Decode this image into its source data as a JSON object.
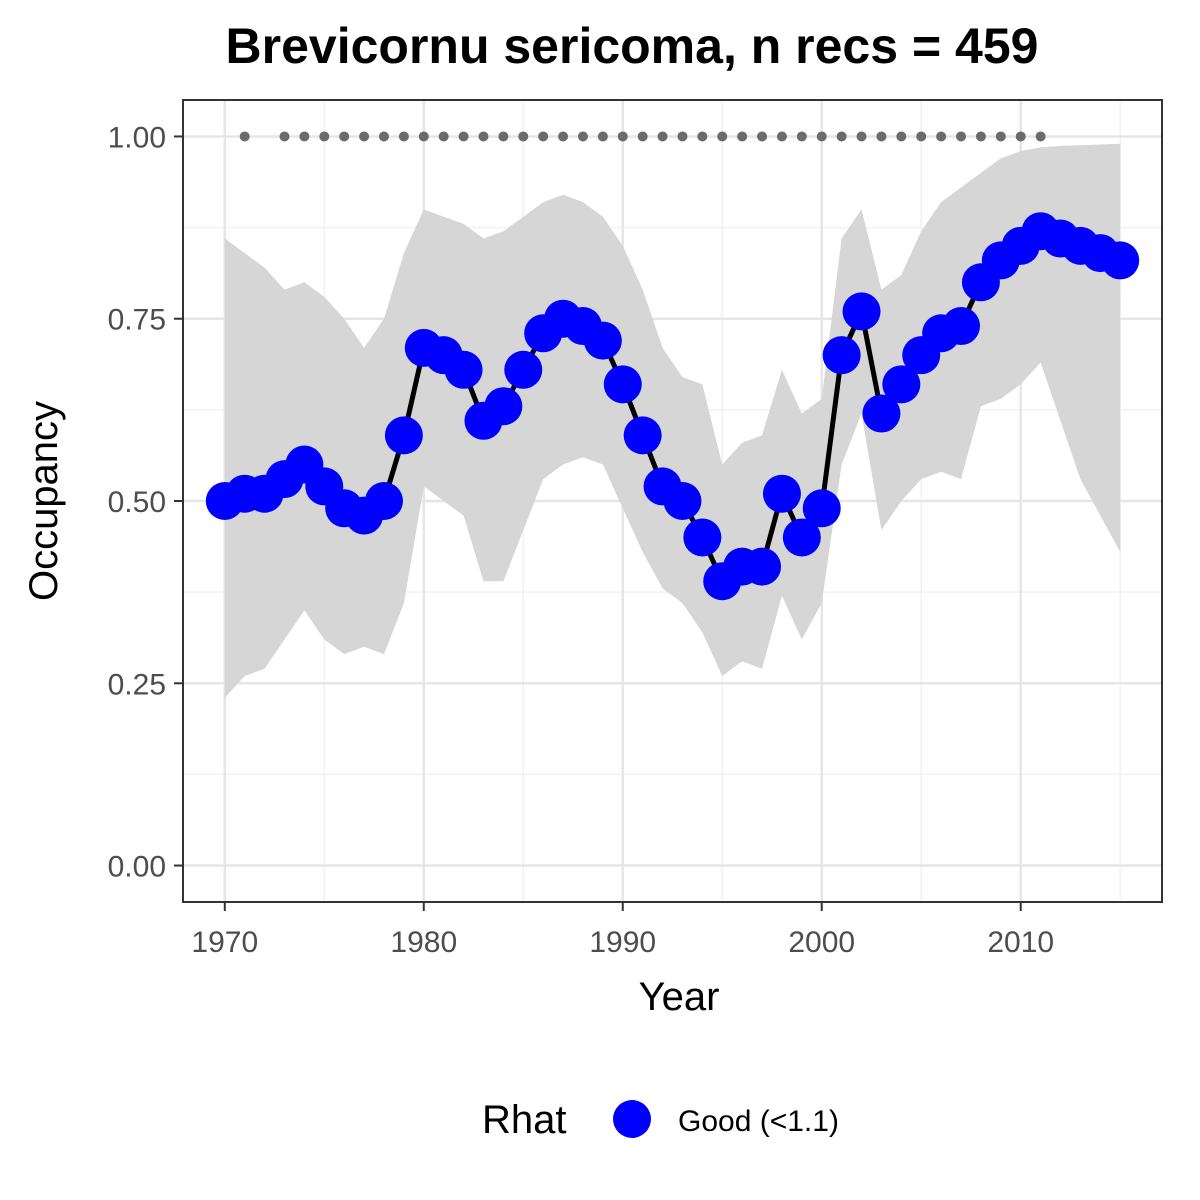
{
  "chart_data": {
    "type": "line",
    "title": "Brevicornu sericoma, n recs = 459",
    "xlabel": "Year",
    "ylabel": "Occupancy",
    "xlim": [
      1967.9,
      2017.1
    ],
    "ylim": [
      -0.05,
      1.05
    ],
    "x_ticks": [
      1970,
      1980,
      1990,
      2000,
      2010
    ],
    "x_tick_labels": [
      "1970",
      "1980",
      "1990",
      "2000",
      "2010"
    ],
    "y_ticks": [
      0.0,
      0.25,
      0.5,
      0.75,
      1.0
    ],
    "y_tick_labels": [
      "0.00",
      "0.25",
      "0.50",
      "0.75",
      "1.00"
    ],
    "grid": true,
    "colors": {
      "points": "#0000ff",
      "line": "#000000",
      "ribbon": "#d6d6d6",
      "marker": "#6b6b6b",
      "grid_major": "#e6e6e6",
      "grid_minor": "#f2f2f2",
      "panel_border": "#333333"
    },
    "legend": {
      "title": "Rhat",
      "position": "bottom",
      "entries": [
        {
          "label": "Good (<1.1)",
          "color": "#0000ff"
        }
      ]
    },
    "series": [
      {
        "x": [
          1970,
          1971,
          1972,
          1973,
          1974,
          1975,
          1976,
          1977,
          1978,
          1979,
          1980,
          1981,
          1982,
          1983,
          1984,
          1985,
          1986,
          1987,
          1988,
          1989,
          1990,
          1991,
          1992,
          1993,
          1994,
          1995,
          1996,
          1997,
          1998,
          1999,
          2000,
          2001,
          2002,
          2003,
          2004,
          2005,
          2006,
          2007,
          2008,
          2009,
          2010,
          2011,
          2012,
          2013,
          2014,
          2015
        ],
        "values": [
          0.5,
          0.51,
          0.51,
          0.53,
          0.55,
          0.52,
          0.49,
          0.48,
          0.5,
          0.59,
          0.71,
          0.7,
          0.68,
          0.61,
          0.63,
          0.68,
          0.73,
          0.75,
          0.74,
          0.72,
          0.66,
          0.59,
          0.52,
          0.5,
          0.45,
          0.39,
          0.41,
          0.41,
          0.51,
          0.45,
          0.49,
          0.7,
          0.76,
          0.62,
          0.66,
          0.7,
          0.73,
          0.74,
          0.8,
          0.83,
          0.85,
          0.87,
          0.86,
          0.85,
          0.84,
          0.83
        ],
        "upper": [
          0.86,
          0.84,
          0.82,
          0.79,
          0.8,
          0.78,
          0.75,
          0.71,
          0.75,
          0.84,
          0.9,
          0.89,
          0.88,
          0.86,
          0.87,
          0.89,
          0.91,
          0.92,
          0.91,
          0.89,
          0.85,
          0.79,
          0.71,
          0.67,
          0.66,
          0.55,
          0.58,
          0.59,
          0.68,
          0.62,
          0.64,
          0.86,
          0.9,
          0.79,
          0.81,
          0.87,
          0.91,
          0.93,
          0.95,
          0.97,
          0.98,
          0.985,
          0.987,
          0.988,
          0.989,
          0.99
        ],
        "lower": [
          0.23,
          0.26,
          0.27,
          0.31,
          0.35,
          0.31,
          0.29,
          0.3,
          0.29,
          0.36,
          0.52,
          0.5,
          0.48,
          0.39,
          0.39,
          0.46,
          0.53,
          0.55,
          0.56,
          0.55,
          0.49,
          0.43,
          0.38,
          0.36,
          0.32,
          0.26,
          0.28,
          0.27,
          0.37,
          0.31,
          0.36,
          0.55,
          0.62,
          0.46,
          0.5,
          0.53,
          0.54,
          0.53,
          0.63,
          0.64,
          0.66,
          0.69,
          0.61,
          0.53,
          0.48,
          0.43
        ]
      }
    ],
    "markers": {
      "y": 1.0,
      "x": [
        1971,
        1973,
        1974,
        1975,
        1976,
        1977,
        1978,
        1979,
        1980,
        1981,
        1982,
        1983,
        1984,
        1985,
        1986,
        1987,
        1988,
        1989,
        1990,
        1991,
        1992,
        1993,
        1994,
        1995,
        1996,
        1997,
        1998,
        1999,
        2000,
        2001,
        2002,
        2003,
        2004,
        2005,
        2006,
        2007,
        2008,
        2009,
        2010,
        2011
      ]
    }
  }
}
